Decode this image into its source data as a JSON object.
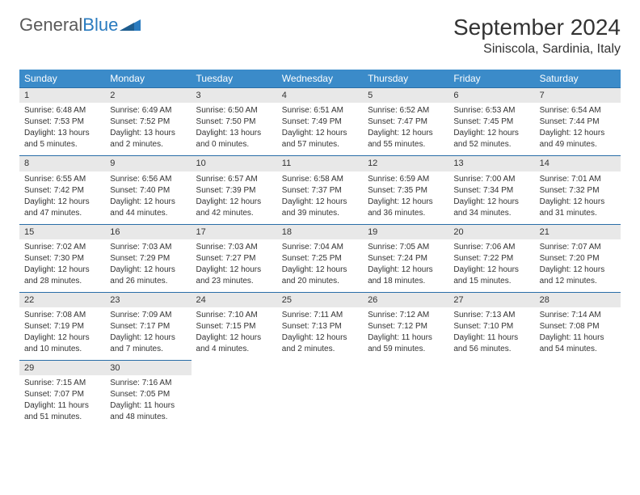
{
  "logo": {
    "text1": "General",
    "text2": "Blue"
  },
  "title": "September 2024",
  "location": "Siniscola, Sardinia, Italy",
  "day_names": [
    "Sunday",
    "Monday",
    "Tuesday",
    "Wednesday",
    "Thursday",
    "Friday",
    "Saturday"
  ],
  "colors": {
    "header_bg": "#3b8bc9",
    "daynum_bg": "#e8e8e8",
    "rule": "#2a6ea8",
    "logo_gray": "#5a5a5a",
    "logo_blue": "#2a7bbf"
  },
  "weeks": [
    [
      {
        "n": "1",
        "sr": "Sunrise: 6:48 AM",
        "ss": "Sunset: 7:53 PM",
        "d1": "Daylight: 13 hours",
        "d2": "and 5 minutes."
      },
      {
        "n": "2",
        "sr": "Sunrise: 6:49 AM",
        "ss": "Sunset: 7:52 PM",
        "d1": "Daylight: 13 hours",
        "d2": "and 2 minutes."
      },
      {
        "n": "3",
        "sr": "Sunrise: 6:50 AM",
        "ss": "Sunset: 7:50 PM",
        "d1": "Daylight: 13 hours",
        "d2": "and 0 minutes."
      },
      {
        "n": "4",
        "sr": "Sunrise: 6:51 AM",
        "ss": "Sunset: 7:49 PM",
        "d1": "Daylight: 12 hours",
        "d2": "and 57 minutes."
      },
      {
        "n": "5",
        "sr": "Sunrise: 6:52 AM",
        "ss": "Sunset: 7:47 PM",
        "d1": "Daylight: 12 hours",
        "d2": "and 55 minutes."
      },
      {
        "n": "6",
        "sr": "Sunrise: 6:53 AM",
        "ss": "Sunset: 7:45 PM",
        "d1": "Daylight: 12 hours",
        "d2": "and 52 minutes."
      },
      {
        "n": "7",
        "sr": "Sunrise: 6:54 AM",
        "ss": "Sunset: 7:44 PM",
        "d1": "Daylight: 12 hours",
        "d2": "and 49 minutes."
      }
    ],
    [
      {
        "n": "8",
        "sr": "Sunrise: 6:55 AM",
        "ss": "Sunset: 7:42 PM",
        "d1": "Daylight: 12 hours",
        "d2": "and 47 minutes."
      },
      {
        "n": "9",
        "sr": "Sunrise: 6:56 AM",
        "ss": "Sunset: 7:40 PM",
        "d1": "Daylight: 12 hours",
        "d2": "and 44 minutes."
      },
      {
        "n": "10",
        "sr": "Sunrise: 6:57 AM",
        "ss": "Sunset: 7:39 PM",
        "d1": "Daylight: 12 hours",
        "d2": "and 42 minutes."
      },
      {
        "n": "11",
        "sr": "Sunrise: 6:58 AM",
        "ss": "Sunset: 7:37 PM",
        "d1": "Daylight: 12 hours",
        "d2": "and 39 minutes."
      },
      {
        "n": "12",
        "sr": "Sunrise: 6:59 AM",
        "ss": "Sunset: 7:35 PM",
        "d1": "Daylight: 12 hours",
        "d2": "and 36 minutes."
      },
      {
        "n": "13",
        "sr": "Sunrise: 7:00 AM",
        "ss": "Sunset: 7:34 PM",
        "d1": "Daylight: 12 hours",
        "d2": "and 34 minutes."
      },
      {
        "n": "14",
        "sr": "Sunrise: 7:01 AM",
        "ss": "Sunset: 7:32 PM",
        "d1": "Daylight: 12 hours",
        "d2": "and 31 minutes."
      }
    ],
    [
      {
        "n": "15",
        "sr": "Sunrise: 7:02 AM",
        "ss": "Sunset: 7:30 PM",
        "d1": "Daylight: 12 hours",
        "d2": "and 28 minutes."
      },
      {
        "n": "16",
        "sr": "Sunrise: 7:03 AM",
        "ss": "Sunset: 7:29 PM",
        "d1": "Daylight: 12 hours",
        "d2": "and 26 minutes."
      },
      {
        "n": "17",
        "sr": "Sunrise: 7:03 AM",
        "ss": "Sunset: 7:27 PM",
        "d1": "Daylight: 12 hours",
        "d2": "and 23 minutes."
      },
      {
        "n": "18",
        "sr": "Sunrise: 7:04 AM",
        "ss": "Sunset: 7:25 PM",
        "d1": "Daylight: 12 hours",
        "d2": "and 20 minutes."
      },
      {
        "n": "19",
        "sr": "Sunrise: 7:05 AM",
        "ss": "Sunset: 7:24 PM",
        "d1": "Daylight: 12 hours",
        "d2": "and 18 minutes."
      },
      {
        "n": "20",
        "sr": "Sunrise: 7:06 AM",
        "ss": "Sunset: 7:22 PM",
        "d1": "Daylight: 12 hours",
        "d2": "and 15 minutes."
      },
      {
        "n": "21",
        "sr": "Sunrise: 7:07 AM",
        "ss": "Sunset: 7:20 PM",
        "d1": "Daylight: 12 hours",
        "d2": "and 12 minutes."
      }
    ],
    [
      {
        "n": "22",
        "sr": "Sunrise: 7:08 AM",
        "ss": "Sunset: 7:19 PM",
        "d1": "Daylight: 12 hours",
        "d2": "and 10 minutes."
      },
      {
        "n": "23",
        "sr": "Sunrise: 7:09 AM",
        "ss": "Sunset: 7:17 PM",
        "d1": "Daylight: 12 hours",
        "d2": "and 7 minutes."
      },
      {
        "n": "24",
        "sr": "Sunrise: 7:10 AM",
        "ss": "Sunset: 7:15 PM",
        "d1": "Daylight: 12 hours",
        "d2": "and 4 minutes."
      },
      {
        "n": "25",
        "sr": "Sunrise: 7:11 AM",
        "ss": "Sunset: 7:13 PM",
        "d1": "Daylight: 12 hours",
        "d2": "and 2 minutes."
      },
      {
        "n": "26",
        "sr": "Sunrise: 7:12 AM",
        "ss": "Sunset: 7:12 PM",
        "d1": "Daylight: 11 hours",
        "d2": "and 59 minutes."
      },
      {
        "n": "27",
        "sr": "Sunrise: 7:13 AM",
        "ss": "Sunset: 7:10 PM",
        "d1": "Daylight: 11 hours",
        "d2": "and 56 minutes."
      },
      {
        "n": "28",
        "sr": "Sunrise: 7:14 AM",
        "ss": "Sunset: 7:08 PM",
        "d1": "Daylight: 11 hours",
        "d2": "and 54 minutes."
      }
    ],
    [
      {
        "n": "29",
        "sr": "Sunrise: 7:15 AM",
        "ss": "Sunset: 7:07 PM",
        "d1": "Daylight: 11 hours",
        "d2": "and 51 minutes."
      },
      {
        "n": "30",
        "sr": "Sunrise: 7:16 AM",
        "ss": "Sunset: 7:05 PM",
        "d1": "Daylight: 11 hours",
        "d2": "and 48 minutes."
      },
      null,
      null,
      null,
      null,
      null
    ]
  ]
}
